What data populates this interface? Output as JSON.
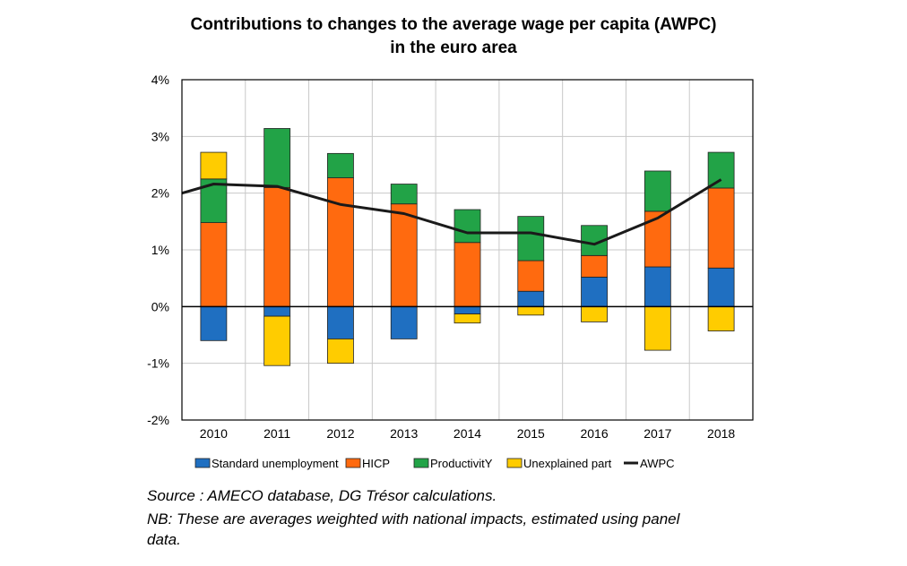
{
  "title_line1": "Contributions to changes to the average wage per capita (AWPC)",
  "title_line2": "in the euro area",
  "source": "Source : AMECO database, DG Trésor calculations.",
  "nb_line1": "NB: These are averages weighted with national impacts, estimated using panel",
  "nb_line2": "data.",
  "colors": {
    "standard_unemployment": "#1f6fc1",
    "hicp": "#ff6a0f",
    "productivity": "#22a347",
    "unexplained": "#ffcc00",
    "awpc": "#1a1a1a",
    "grid": "#c8c8c8"
  },
  "chart_data": {
    "type": "bar",
    "stacked": true,
    "categories": [
      "2010",
      "2011",
      "2012",
      "2013",
      "2014",
      "2015",
      "2016",
      "2017",
      "2018"
    ],
    "y_ticks": [
      "-2%",
      "-1%",
      "0%",
      "1%",
      "2%",
      "3%",
      "4%"
    ],
    "ylim": [
      -2,
      4
    ],
    "grid": true,
    "legend_position": "bottom",
    "series": [
      {
        "name": "Standard unemployment",
        "color": "#1f6fc1",
        "values": [
          -0.6,
          -0.17,
          -0.57,
          -0.57,
          -0.13,
          0.27,
          0.52,
          0.7,
          0.68
        ]
      },
      {
        "name": "HICP",
        "color": "#ff6a0f",
        "values": [
          1.48,
          2.1,
          2.27,
          1.81,
          1.13,
          0.54,
          0.38,
          0.98,
          1.41
        ]
      },
      {
        "name": "ProductivitY",
        "color": "#22a347",
        "values": [
          0.77,
          1.04,
          0.43,
          0.35,
          0.58,
          0.78,
          0.53,
          0.71,
          0.63
        ]
      },
      {
        "name": "Unexplained part",
        "color": "#ffcc00",
        "values": [
          0.47,
          -0.87,
          -0.43,
          0.0,
          -0.16,
          -0.15,
          -0.27,
          -0.77,
          -0.43
        ]
      }
    ],
    "line_series": {
      "name": "AWPC",
      "color": "#1a1a1a",
      "values": [
        2.0,
        2.16,
        2.12,
        1.8,
        1.64,
        1.3,
        1.3,
        1.1,
        1.56,
        2.24
      ],
      "x_positions": [
        -0.5,
        0,
        1,
        2,
        3,
        4,
        5,
        6,
        7,
        8
      ]
    }
  }
}
